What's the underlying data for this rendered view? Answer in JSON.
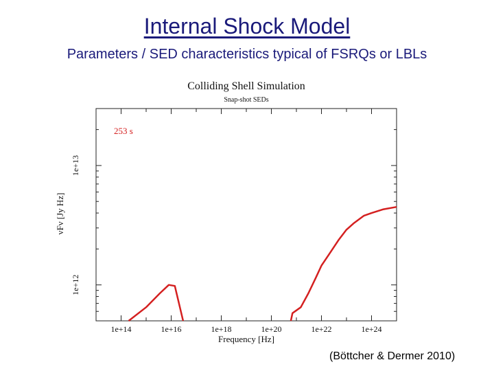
{
  "slide": {
    "title": "Internal Shock Model",
    "subtitle": "Parameters / SED characteristics typical of FSRQs or LBLs",
    "citation": "(Böttcher & Dermer 2010)"
  },
  "chart_data": {
    "type": "line",
    "title": "Colliding Shell Simulation",
    "subtitle": "Snap-shot SEDs",
    "xlabel": "Frequency [Hz]",
    "ylabel": "νFν [Jy Hz]",
    "xscale": "log",
    "yscale": "log",
    "xlim": [
      10000000000000.0,
      1e+25
    ],
    "ylim": [
      500000000000.0,
      30000000000000.0
    ],
    "x_tick_labels": [
      "1e+14",
      "1e+16",
      "1e+18",
      "1e+20",
      "1e+22",
      "1e+24"
    ],
    "y_tick_labels": [
      "1e+12",
      "1e+13"
    ],
    "annotation": "253 s",
    "grid": false,
    "series_color": "#d42020",
    "series": [
      {
        "segments": [
          [
            [
              200000000000000.0,
              500000000000.0
            ],
            [
              1000000000000000.0,
              650000000000.0
            ],
            [
              3500000000000000.0,
              850000000000.0
            ],
            [
              8000000000000000.0,
              1000000000000.0
            ],
            [
              1.4e+16,
              980000000000.0
            ],
            [
              3e+16,
              500000000000.0
            ]
          ],
          [
            [
              6e+20,
              500000000000.0
            ],
            [
              7e+20,
              580000000000.0
            ],
            [
              1.5e+21,
              650000000000.0
            ],
            [
              3e+21,
              850000000000.0
            ],
            [
              6e+21,
              1150000000000.0
            ],
            [
              1e+22,
              1450000000000.0
            ],
            [
              2e+22,
              1800000000000.0
            ],
            [
              5e+22,
              2400000000000.0
            ],
            [
              1e+23,
              2900000000000.0
            ],
            [
              2e+23,
              3300000000000.0
            ],
            [
              5e+23,
              3800000000000.0
            ],
            [
              1e+24,
              4000000000000.0
            ],
            [
              3e+24,
              4300000000000.0
            ],
            [
              1e+25,
              4500000000000.0
            ]
          ]
        ]
      }
    ]
  }
}
